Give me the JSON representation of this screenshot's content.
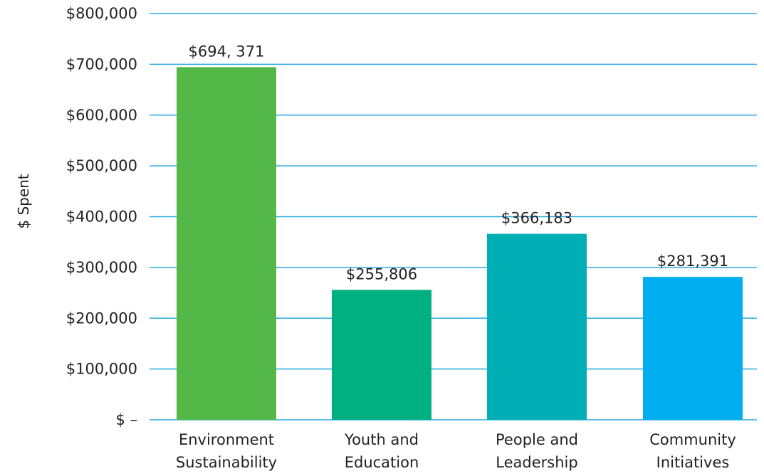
{
  "chart_data": {
    "type": "bar",
    "categories": [
      [
        "Environment",
        "Sustainability"
      ],
      [
        "Youth and",
        "Education"
      ],
      [
        "People and",
        "Leadership"
      ],
      [
        "Community",
        "Initiatives"
      ]
    ],
    "values": [
      694371,
      255806,
      366183,
      281391
    ],
    "data_labels": [
      "$694, 371",
      "$255,806",
      "$366,183",
      "$281,391"
    ],
    "bar_colors": [
      "#53b848",
      "#00b081",
      "#00aeb5",
      "#00aeef"
    ],
    "ylabel": "$ Spent",
    "xlabel": "",
    "ylim": [
      0,
      800000
    ],
    "y_ticks": [
      0,
      100000,
      200000,
      300000,
      400000,
      500000,
      600000,
      700000,
      800000
    ],
    "y_tick_labels": [
      "$ –",
      "$100,000",
      "$200,000",
      "$300,000",
      "$400,000",
      "$500,000",
      "$600,000",
      "$700,000",
      "$800,000"
    ],
    "grid": true,
    "gridline_color": "#29abe2",
    "legend": "none"
  }
}
